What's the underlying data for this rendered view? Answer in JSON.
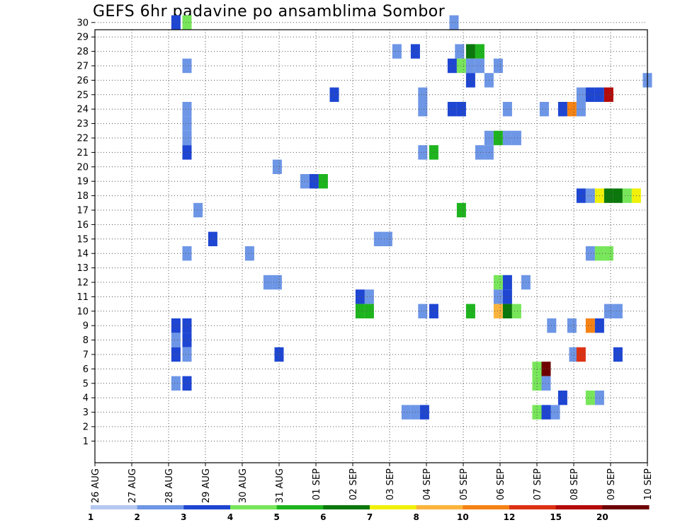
{
  "chart_data": {
    "type": "heatmap",
    "title": "GEFS 6hr padavine po ansamblima Sombor",
    "x_ticks": [
      "26 AUG",
      "27 AUG",
      "28 AUG",
      "29 AUG",
      "30 AUG",
      "31 AUG",
      "01 SEP",
      "02 SEP",
      "03 SEP",
      "04 SEP",
      "05 SEP",
      "06 SEP",
      "07 SEP",
      "08 SEP",
      "09 SEP",
      "10 SEP"
    ],
    "y_ticks": [
      "1",
      "2",
      "3",
      "4",
      "5",
      "6",
      "7",
      "8",
      "9",
      "10",
      "11",
      "12",
      "13",
      "14",
      "15",
      "16",
      "17",
      "18",
      "19",
      "20",
      "21",
      "22",
      "23",
      "24",
      "25",
      "26",
      "27",
      "28",
      "29",
      "30"
    ],
    "grid": true,
    "colorbar": {
      "labels": [
        "1",
        "2",
        "3",
        "4",
        "5",
        "6",
        "7",
        "8",
        "10",
        "12",
        "15",
        "20"
      ],
      "colors": [
        "#b4c8f0",
        "#6e96e6",
        "#1e46d2",
        "#78e65a",
        "#1eb41e",
        "#0a780a",
        "#f0f00a",
        "#fab43c",
        "#f58214",
        "#dc3214",
        "#b40a0a",
        "#6e0000"
      ]
    },
    "cells": [
      {
        "m": 30,
        "d": 2.2,
        "c": 3
      },
      {
        "m": 30,
        "d": 2.5,
        "c": 4
      },
      {
        "m": 30,
        "d": 9.75,
        "c": 2
      },
      {
        "m": 28,
        "d": 8.2,
        "c": 2
      },
      {
        "m": 28,
        "d": 8.7,
        "c": 3
      },
      {
        "m": 28,
        "d": 9.9,
        "c": 2
      },
      {
        "m": 28,
        "d": 10.2,
        "c": 6
      },
      {
        "m": 28,
        "d": 10.45,
        "c": 5
      },
      {
        "m": 27,
        "d": 2.5,
        "c": 2
      },
      {
        "m": 27,
        "d": 9.7,
        "c": 3
      },
      {
        "m": 27,
        "d": 9.95,
        "c": 4
      },
      {
        "m": 27,
        "d": 10.2,
        "c": 2
      },
      {
        "m": 27,
        "d": 10.45,
        "c": 2
      },
      {
        "m": 27,
        "d": 10.95,
        "c": 2
      },
      {
        "m": 26,
        "d": 10.2,
        "c": 3
      },
      {
        "m": 26,
        "d": 10.7,
        "c": 2
      },
      {
        "m": 26,
        "d": 15.0,
        "c": 2
      },
      {
        "m": 25,
        "d": 6.5,
        "c": 3
      },
      {
        "m": 25,
        "d": 8.9,
        "c": 2
      },
      {
        "m": 25,
        "d": 13.2,
        "c": 2
      },
      {
        "m": 25,
        "d": 13.45,
        "c": 3
      },
      {
        "m": 25,
        "d": 13.7,
        "c": 3
      },
      {
        "m": 25,
        "d": 13.95,
        "c": 11
      },
      {
        "m": 24,
        "d": 2.5,
        "c": 2
      },
      {
        "m": 24,
        "d": 8.9,
        "c": 2
      },
      {
        "m": 24,
        "d": 9.7,
        "c": 3
      },
      {
        "m": 24,
        "d": 9.95,
        "c": 3
      },
      {
        "m": 24,
        "d": 11.2,
        "c": 2
      },
      {
        "m": 24,
        "d": 12.2,
        "c": 2
      },
      {
        "m": 24,
        "d": 12.7,
        "c": 3
      },
      {
        "m": 24,
        "d": 12.95,
        "c": 9
      },
      {
        "m": 24,
        "d": 13.2,
        "c": 2
      },
      {
        "m": 23,
        "d": 2.5,
        "c": 2
      },
      {
        "m": 22,
        "d": 2.5,
        "c": 2
      },
      {
        "m": 22,
        "d": 10.7,
        "c": 2
      },
      {
        "m": 22,
        "d": 10.95,
        "c": 5
      },
      {
        "m": 22,
        "d": 11.2,
        "c": 2
      },
      {
        "m": 22,
        "d": 11.45,
        "c": 2
      },
      {
        "m": 21,
        "d": 2.5,
        "c": 3
      },
      {
        "m": 21,
        "d": 8.9,
        "c": 2
      },
      {
        "m": 21,
        "d": 9.2,
        "c": 5
      },
      {
        "m": 21,
        "d": 10.45,
        "c": 2
      },
      {
        "m": 21,
        "d": 10.7,
        "c": 2
      },
      {
        "m": 20,
        "d": 4.95,
        "c": 2
      },
      {
        "m": 19,
        "d": 5.7,
        "c": 2
      },
      {
        "m": 19,
        "d": 5.95,
        "c": 3
      },
      {
        "m": 19,
        "d": 6.2,
        "c": 5
      },
      {
        "m": 18,
        "d": 13.2,
        "c": 3
      },
      {
        "m": 18,
        "d": 13.45,
        "c": 2
      },
      {
        "m": 18,
        "d": 13.7,
        "c": 7
      },
      {
        "m": 18,
        "d": 13.95,
        "c": 6
      },
      {
        "m": 18,
        "d": 14.2,
        "c": 6
      },
      {
        "m": 18,
        "d": 14.45,
        "c": 4
      },
      {
        "m": 18,
        "d": 14.7,
        "c": 7
      },
      {
        "m": 17,
        "d": 2.8,
        "c": 2
      },
      {
        "m": 17,
        "d": 9.95,
        "c": 5
      },
      {
        "m": 15,
        "d": 3.2,
        "c": 3
      },
      {
        "m": 15,
        "d": 7.7,
        "c": 2
      },
      {
        "m": 15,
        "d": 7.95,
        "c": 2
      },
      {
        "m": 14,
        "d": 2.5,
        "c": 2
      },
      {
        "m": 14,
        "d": 4.2,
        "c": 2
      },
      {
        "m": 14,
        "d": 13.45,
        "c": 2
      },
      {
        "m": 14,
        "d": 13.7,
        "c": 4
      },
      {
        "m": 14,
        "d": 13.95,
        "c": 4
      },
      {
        "m": 12,
        "d": 4.7,
        "c": 2
      },
      {
        "m": 12,
        "d": 4.95,
        "c": 2
      },
      {
        "m": 12,
        "d": 10.95,
        "c": 4
      },
      {
        "m": 12,
        "d": 11.2,
        "c": 3
      },
      {
        "m": 12,
        "d": 11.7,
        "c": 2
      },
      {
        "m": 11,
        "d": 7.2,
        "c": 3
      },
      {
        "m": 11,
        "d": 7.45,
        "c": 2
      },
      {
        "m": 11,
        "d": 10.95,
        "c": 2
      },
      {
        "m": 11,
        "d": 11.2,
        "c": 3
      },
      {
        "m": 10,
        "d": 7.2,
        "c": 5
      },
      {
        "m": 10,
        "d": 7.45,
        "c": 5
      },
      {
        "m": 10,
        "d": 8.9,
        "c": 2
      },
      {
        "m": 10,
        "d": 9.2,
        "c": 3
      },
      {
        "m": 10,
        "d": 10.2,
        "c": 5
      },
      {
        "m": 10,
        "d": 10.95,
        "c": 8
      },
      {
        "m": 10,
        "d": 11.2,
        "c": 6
      },
      {
        "m": 10,
        "d": 11.45,
        "c": 4
      },
      {
        "m": 10,
        "d": 13.95,
        "c": 2
      },
      {
        "m": 10,
        "d": 14.2,
        "c": 2
      },
      {
        "m": 9,
        "d": 2.2,
        "c": 3
      },
      {
        "m": 9,
        "d": 2.5,
        "c": 3
      },
      {
        "m": 8,
        "d": 2.2,
        "c": 2
      },
      {
        "m": 8,
        "d": 2.5,
        "c": 3
      },
      {
        "m": 7,
        "d": 2.2,
        "c": 3
      },
      {
        "m": 7,
        "d": 2.5,
        "c": 2
      },
      {
        "m": 5,
        "d": 2.2,
        "c": 2
      },
      {
        "m": 5,
        "d": 2.5,
        "c": 3
      },
      {
        "m": 9,
        "d": 12.4,
        "c": 2
      },
      {
        "m": 9,
        "d": 12.95,
        "c": 2
      },
      {
        "m": 9,
        "d": 13.45,
        "c": 9
      },
      {
        "m": 9,
        "d": 13.7,
        "c": 3
      },
      {
        "m": 7,
        "d": 5.0,
        "c": 3
      },
      {
        "m": 7,
        "d": 13.0,
        "c": 2
      },
      {
        "m": 7,
        "d": 13.2,
        "c": 10
      },
      {
        "m": 7,
        "d": 14.2,
        "c": 3
      },
      {
        "m": 6,
        "d": 12.0,
        "c": 4
      },
      {
        "m": 6,
        "d": 12.25,
        "c": 12
      },
      {
        "m": 5,
        "d": 12.0,
        "c": 4
      },
      {
        "m": 5,
        "d": 12.25,
        "c": 2
      },
      {
        "m": 4,
        "d": 12.7,
        "c": 3
      },
      {
        "m": 4,
        "d": 13.45,
        "c": 4
      },
      {
        "m": 4,
        "d": 13.7,
        "c": 2
      },
      {
        "m": 3,
        "d": 8.45,
        "c": 2
      },
      {
        "m": 3,
        "d": 8.7,
        "c": 2
      },
      {
        "m": 3,
        "d": 8.95,
        "c": 3
      },
      {
        "m": 3,
        "d": 12.0,
        "c": 4
      },
      {
        "m": 3,
        "d": 12.25,
        "c": 3
      },
      {
        "m": 3,
        "d": 12.5,
        "c": 2
      }
    ]
  }
}
